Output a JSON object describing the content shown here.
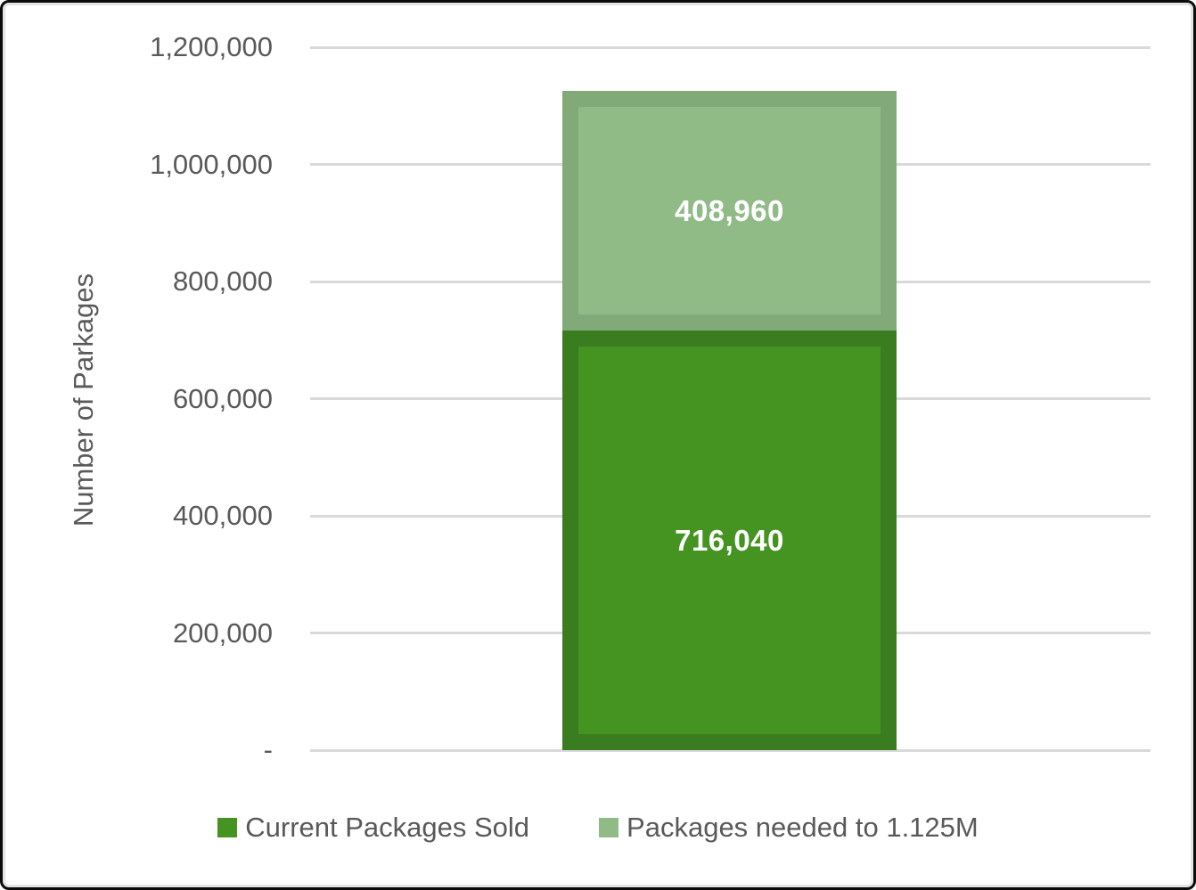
{
  "chart_data": {
    "type": "bar",
    "stacked": true,
    "title": "",
    "ylabel": "Number of Parkages",
    "ylim": [
      0,
      1200000
    ],
    "ytick_interval": 200000,
    "ytick_labels": [
      "-",
      "200,000",
      "400,000",
      "600,000",
      "800,000",
      "1,000,000",
      "1,200,000"
    ],
    "categories": [
      ""
    ],
    "series": [
      {
        "name": "Current Packages Sold",
        "value": 716040,
        "data_label": "716,040",
        "fill": "#459422",
        "border": "#3a7d20"
      },
      {
        "name": "Packages needed to 1.125M",
        "value": 408960,
        "data_label": "408,960",
        "fill": "#90bb87",
        "border": "#81aa78"
      }
    ],
    "total": 1125000,
    "grid": true,
    "legend_position": "bottom",
    "gridline_color": "#d9d9d9",
    "axis_text_color": "#595959",
    "data_label_color": "#ffffff"
  }
}
